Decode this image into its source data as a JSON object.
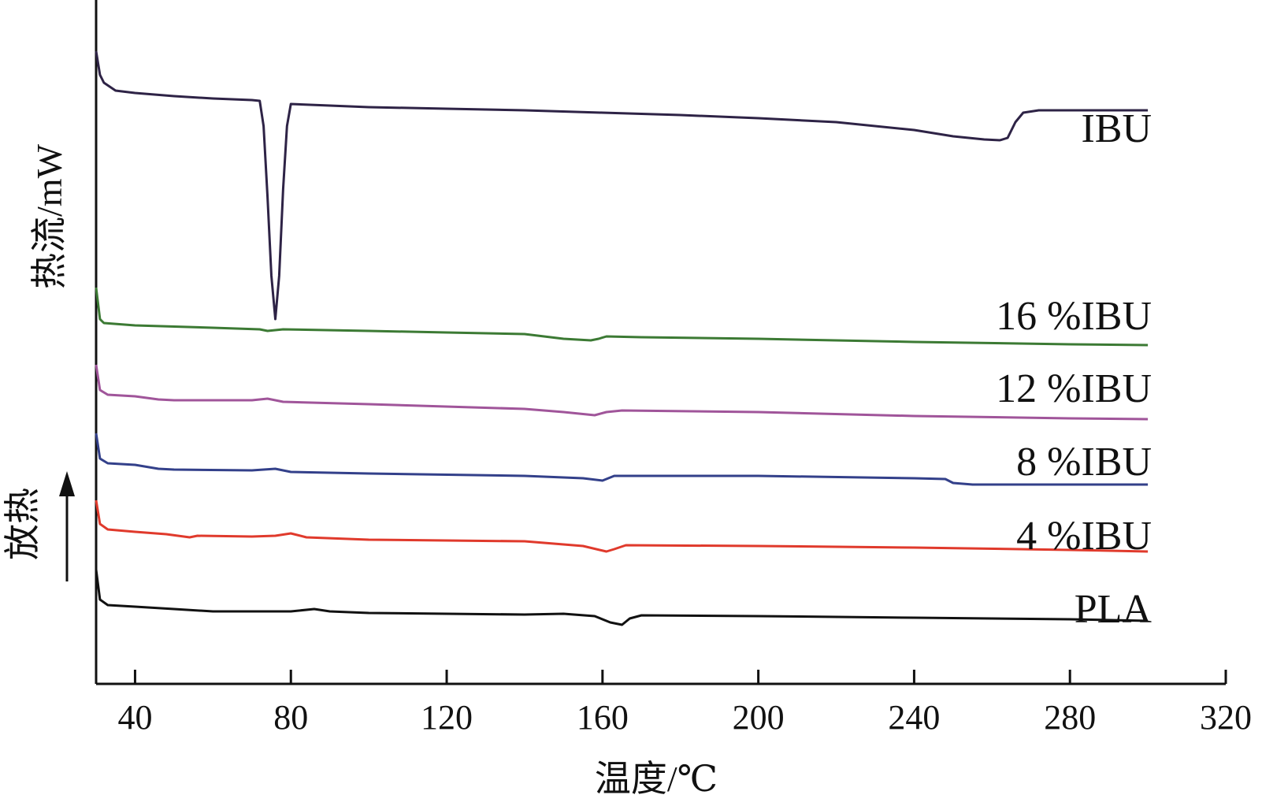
{
  "chart_data": {
    "type": "line",
    "xlabel": "温度/℃",
    "ylabel": "热流/mW",
    "exo_label": "放热",
    "x_ticks": [
      40,
      80,
      120,
      160,
      200,
      240,
      280,
      320
    ],
    "xlim": [
      30,
      320
    ],
    "y_scale": "arbitrary offset",
    "grid": false,
    "legend": "labels at right end of each curve",
    "series": [
      {
        "name": "IBU",
        "color": "#2e2346",
        "points": [
          [
            30,
            3.45
          ],
          [
            31,
            3.15
          ],
          [
            32,
            3.05
          ],
          [
            35,
            2.95
          ],
          [
            40,
            2.92
          ],
          [
            50,
            2.88
          ],
          [
            60,
            2.85
          ],
          [
            70,
            2.83
          ],
          [
            72,
            2.82
          ],
          [
            73,
            2.5
          ],
          [
            74,
            1.6
          ],
          [
            75,
            0.6
          ],
          [
            76,
            0.05
          ],
          [
            77,
            0.6
          ],
          [
            78,
            1.7
          ],
          [
            79,
            2.5
          ],
          [
            80,
            2.78
          ],
          [
            90,
            2.76
          ],
          [
            100,
            2.74
          ],
          [
            120,
            2.72
          ],
          [
            140,
            2.7
          ],
          [
            160,
            2.67
          ],
          [
            180,
            2.64
          ],
          [
            200,
            2.6
          ],
          [
            220,
            2.55
          ],
          [
            240,
            2.45
          ],
          [
            250,
            2.37
          ],
          [
            258,
            2.33
          ],
          [
            262,
            2.32
          ],
          [
            264,
            2.35
          ],
          [
            266,
            2.55
          ],
          [
            268,
            2.67
          ],
          [
            272,
            2.7
          ],
          [
            280,
            2.7
          ],
          [
            300,
            2.7
          ]
        ]
      },
      {
        "name": "16 %IBU",
        "color": "#3c7a34",
        "points": [
          [
            30,
            0.75
          ],
          [
            31,
            0.35
          ],
          [
            32,
            0.3
          ],
          [
            40,
            0.27
          ],
          [
            60,
            0.24
          ],
          [
            72,
            0.22
          ],
          [
            74,
            0.2
          ],
          [
            78,
            0.22
          ],
          [
            100,
            0.2
          ],
          [
            120,
            0.18
          ],
          [
            140,
            0.16
          ],
          [
            150,
            0.1
          ],
          [
            157,
            0.08
          ],
          [
            159,
            0.1
          ],
          [
            161,
            0.13
          ],
          [
            170,
            0.12
          ],
          [
            200,
            0.1
          ],
          [
            240,
            0.06
          ],
          [
            280,
            0.03
          ],
          [
            300,
            0.02
          ]
        ]
      },
      {
        "name": "12 %IBU",
        "color": "#a0559a",
        "points": [
          [
            30,
            0.8
          ],
          [
            31,
            0.48
          ],
          [
            33,
            0.42
          ],
          [
            40,
            0.4
          ],
          [
            46,
            0.36
          ],
          [
            50,
            0.35
          ],
          [
            70,
            0.35
          ],
          [
            74,
            0.37
          ],
          [
            78,
            0.33
          ],
          [
            100,
            0.3
          ],
          [
            140,
            0.24
          ],
          [
            150,
            0.2
          ],
          [
            158,
            0.16
          ],
          [
            161,
            0.2
          ],
          [
            165,
            0.22
          ],
          [
            200,
            0.2
          ],
          [
            240,
            0.15
          ],
          [
            280,
            0.12
          ],
          [
            300,
            0.11
          ]
        ]
      },
      {
        "name": "8 %IBU",
        "color": "#33408a",
        "points": [
          [
            30,
            0.87
          ],
          [
            31,
            0.55
          ],
          [
            33,
            0.49
          ],
          [
            40,
            0.47
          ],
          [
            46,
            0.42
          ],
          [
            50,
            0.41
          ],
          [
            70,
            0.4
          ],
          [
            76,
            0.42
          ],
          [
            80,
            0.38
          ],
          [
            100,
            0.36
          ],
          [
            140,
            0.33
          ],
          [
            155,
            0.3
          ],
          [
            160,
            0.27
          ],
          [
            163,
            0.33
          ],
          [
            200,
            0.33
          ],
          [
            240,
            0.3
          ],
          [
            248,
            0.29
          ],
          [
            250,
            0.24
          ],
          [
            255,
            0.22
          ],
          [
            280,
            0.22
          ],
          [
            300,
            0.22
          ]
        ]
      },
      {
        "name": "4 %IBU",
        "color": "#e03a2c",
        "points": [
          [
            30,
            0.95
          ],
          [
            31,
            0.65
          ],
          [
            33,
            0.58
          ],
          [
            40,
            0.55
          ],
          [
            48,
            0.52
          ],
          [
            54,
            0.48
          ],
          [
            56,
            0.5
          ],
          [
            70,
            0.49
          ],
          [
            76,
            0.5
          ],
          [
            80,
            0.53
          ],
          [
            84,
            0.48
          ],
          [
            100,
            0.45
          ],
          [
            140,
            0.43
          ],
          [
            155,
            0.37
          ],
          [
            161,
            0.3
          ],
          [
            163,
            0.33
          ],
          [
            166,
            0.38
          ],
          [
            200,
            0.37
          ],
          [
            240,
            0.35
          ],
          [
            280,
            0.32
          ],
          [
            300,
            0.3
          ]
        ]
      },
      {
        "name": "PLA",
        "color": "#111111",
        "points": [
          [
            30,
            1.0
          ],
          [
            31,
            0.62
          ],
          [
            33,
            0.55
          ],
          [
            40,
            0.53
          ],
          [
            50,
            0.5
          ],
          [
            60,
            0.47
          ],
          [
            70,
            0.47
          ],
          [
            80,
            0.47
          ],
          [
            86,
            0.5
          ],
          [
            90,
            0.47
          ],
          [
            100,
            0.45
          ],
          [
            140,
            0.43
          ],
          [
            150,
            0.44
          ],
          [
            158,
            0.41
          ],
          [
            162,
            0.33
          ],
          [
            165,
            0.3
          ],
          [
            167,
            0.38
          ],
          [
            170,
            0.42
          ],
          [
            200,
            0.41
          ],
          [
            240,
            0.39
          ],
          [
            280,
            0.37
          ],
          [
            300,
            0.35
          ]
        ]
      }
    ]
  }
}
